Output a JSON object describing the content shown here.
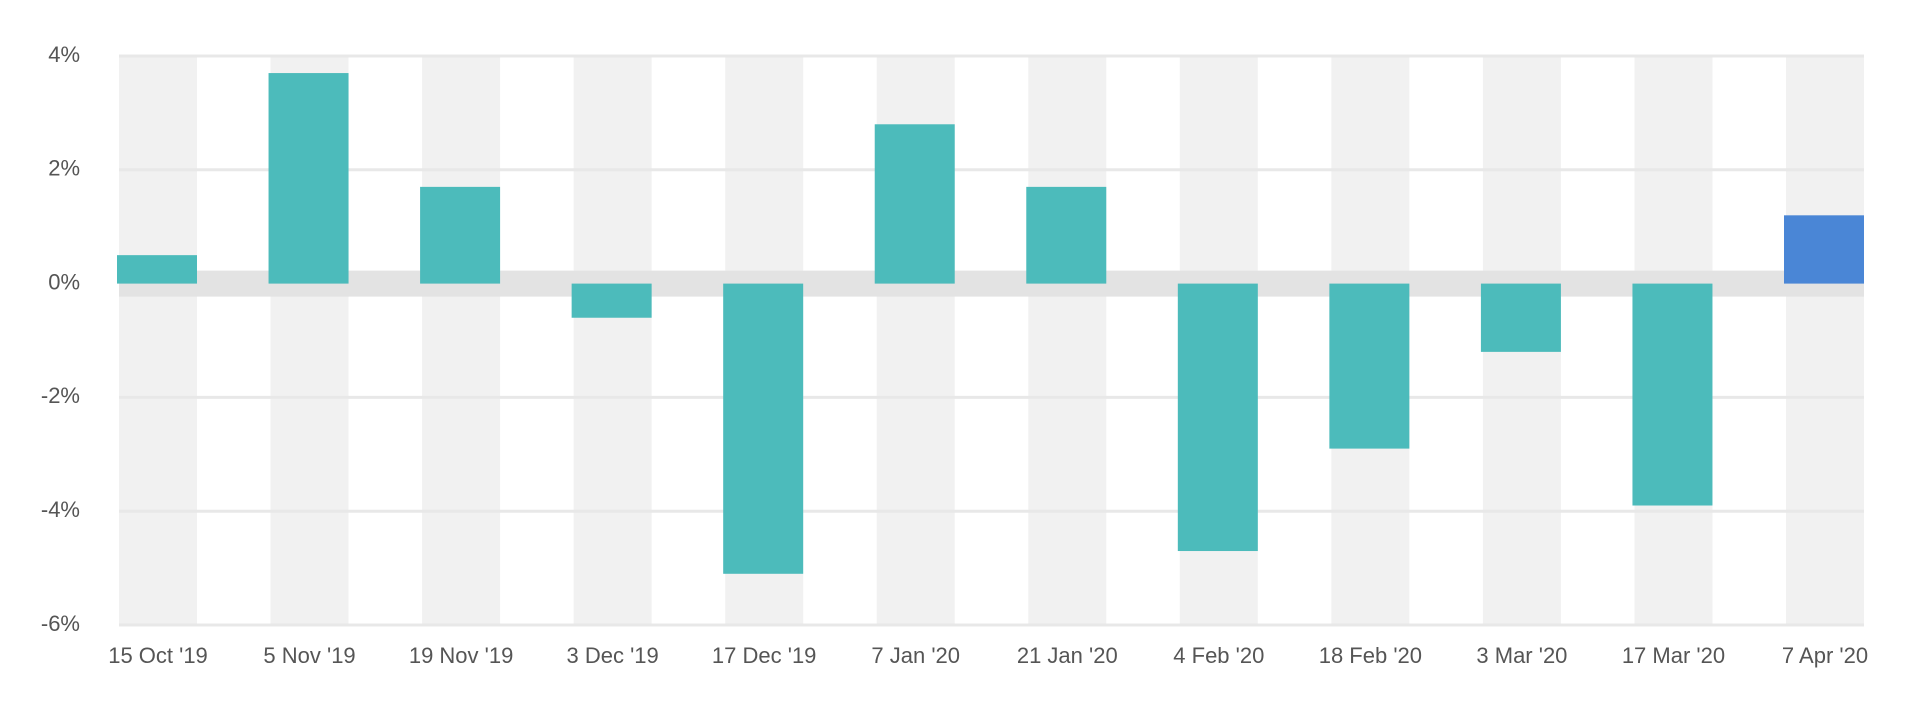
{
  "chart_data": {
    "type": "bar",
    "categories": [
      "15 Oct '19",
      "5 Nov '19",
      "19 Nov '19",
      "3 Dec '19",
      "17 Dec '19",
      "7 Jan '20",
      "21 Jan '20",
      "4 Feb '20",
      "18 Feb '20",
      "3 Mar '20",
      "17 Mar '20",
      "7 Apr '20"
    ],
    "values": [
      0.5,
      3.7,
      1.7,
      -0.6,
      -5.1,
      2.8,
      1.7,
      -4.7,
      -2.9,
      -1.2,
      -3.9,
      1.2
    ],
    "colors": [
      "#4cbbbb",
      "#4cbbbb",
      "#4cbbbb",
      "#4cbbbb",
      "#4cbbbb",
      "#4cbbbb",
      "#4cbbbb",
      "#4cbbbb",
      "#4cbbbb",
      "#4cbbbb",
      "#4cbbbb",
      "#4a86d6"
    ],
    "ylim": [
      -6,
      4
    ],
    "yticks": [
      {
        "value": 4,
        "label": "4%"
      },
      {
        "value": 2,
        "label": "2%"
      },
      {
        "value": 0,
        "label": "0%"
      },
      {
        "value": -2,
        "label": "-2%"
      },
      {
        "value": -4,
        "label": "-4%"
      },
      {
        "value": -6,
        "label": "-6%"
      }
    ],
    "grid": true
  }
}
